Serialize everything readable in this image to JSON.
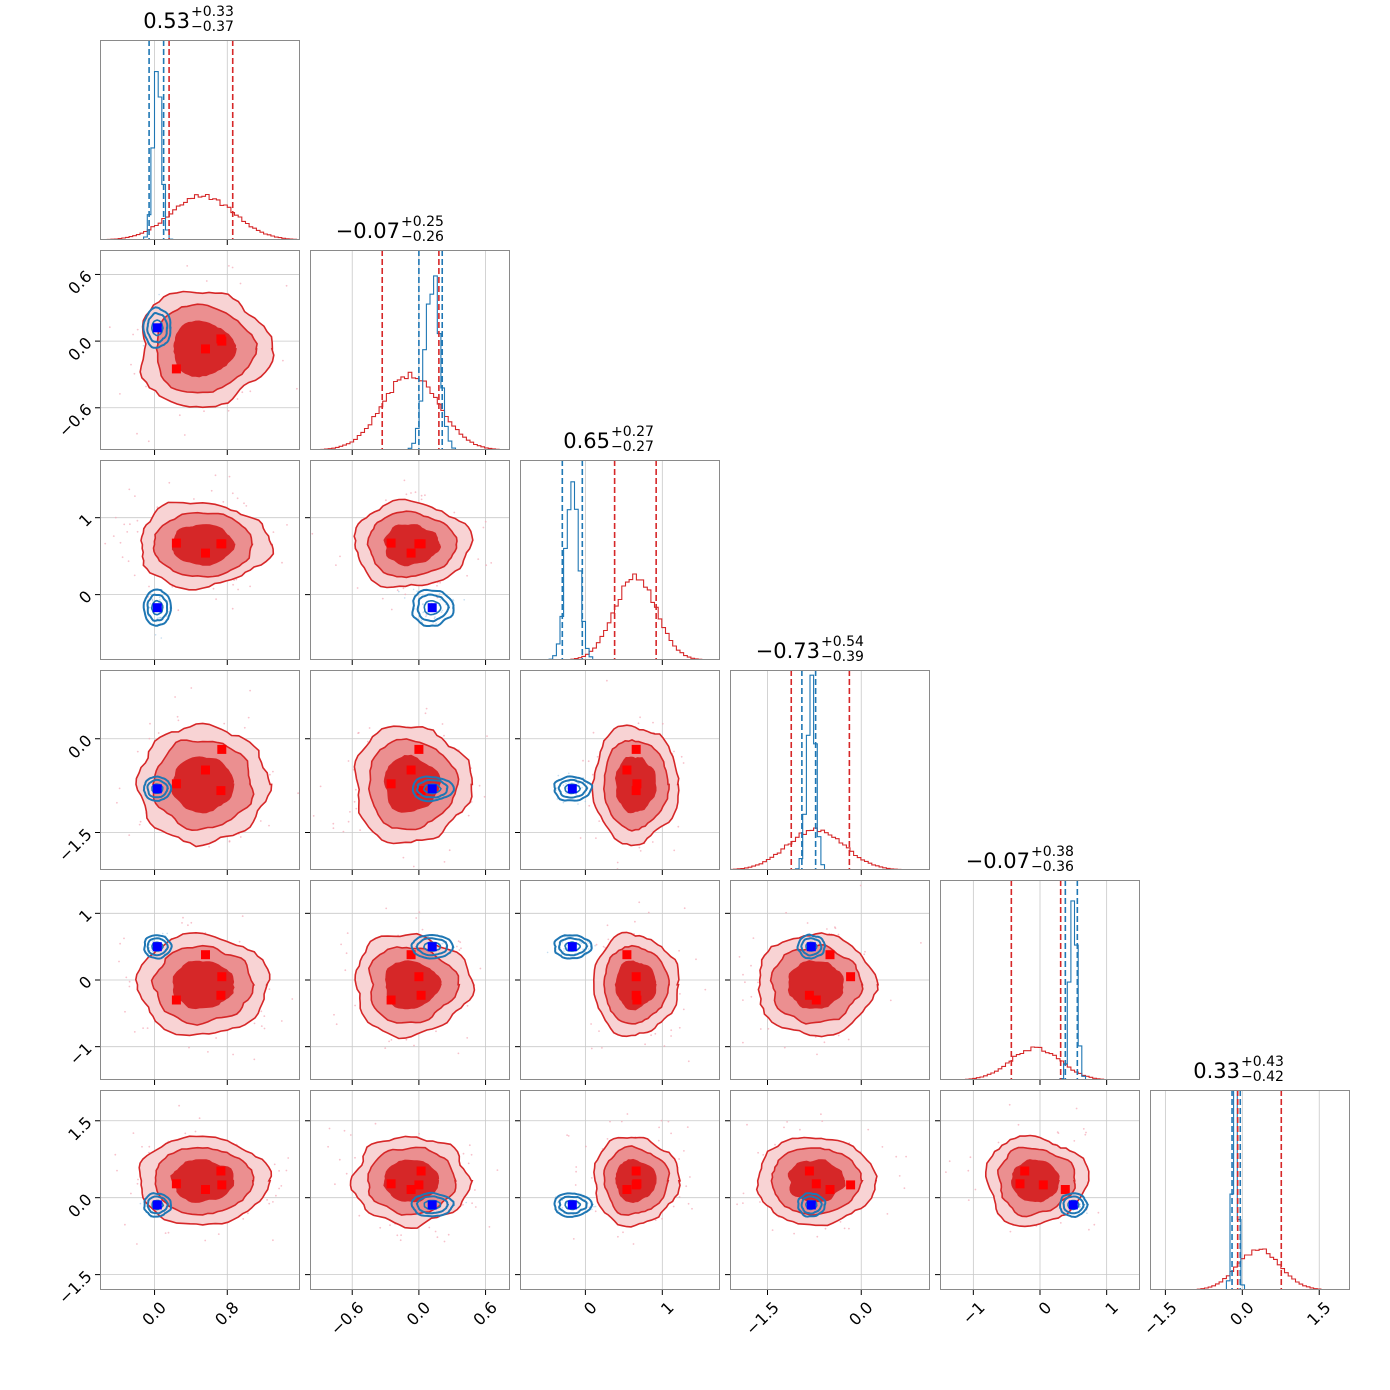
{
  "figure": {
    "colors": {
      "red": "#d62728",
      "blue": "#1f77b4",
      "grid": "#c8c8c8",
      "frame": "#8a8a8a",
      "fill1": "#d62728",
      "fill2": "#eb8f90",
      "fill3": "#f8d3d4",
      "marker_red": "#ff0000",
      "marker_blue": "#0000ff"
    }
  },
  "chart_data": {
    "type": "corner",
    "grid": true,
    "parameters": [
      {
        "range": [
          -0.6,
          1.6
        ],
        "ticks": [
          0.0,
          0.8
        ],
        "tick_labels": [
          "0.0",
          "0.8"
        ],
        "title": {
          "value": "0.53",
          "plus": "+0.33",
          "minus": "−0.37"
        },
        "red_hist": {
          "mu": 0.53,
          "sigma": 0.35,
          "peak": 0.22
        },
        "blue_hist": {
          "mu": 0.03,
          "sigma": 0.045,
          "peak": 0.92
        },
        "red_lines": [
          0.16,
          0.86
        ],
        "blue_lines": [
          -0.06,
          0.1
        ]
      },
      {
        "range": [
          -0.98,
          0.82
        ],
        "ticks": [
          -0.6,
          0.0,
          0.6
        ],
        "tick_labels": [
          "−0.6",
          "0.0",
          "0.6"
        ],
        "title": {
          "value": "−0.07",
          "plus": "+0.25",
          "minus": "−0.26"
        },
        "red_hist": {
          "mu": -0.07,
          "sigma": 0.255,
          "peak": 0.38
        },
        "blue_hist": {
          "mu": 0.12,
          "sigma": 0.065,
          "peak": 0.87
        },
        "red_lines": [
          -0.33,
          0.18
        ],
        "blue_lines": [
          0.0,
          0.21
        ]
      },
      {
        "range": [
          -0.85,
          1.75
        ],
        "ticks": [
          0,
          1
        ],
        "tick_labels": [
          "0",
          "1"
        ],
        "title": {
          "value": "0.65",
          "plus": "+0.27",
          "minus": "−0.27"
        },
        "red_hist": {
          "mu": 0.65,
          "sigma": 0.27,
          "peak": 0.42
        },
        "blue_hist": {
          "mu": -0.17,
          "sigma": 0.085,
          "peak": 0.87
        },
        "red_lines": [
          0.38,
          0.92
        ],
        "blue_lines": [
          -0.3,
          -0.04
        ]
      },
      {
        "range": [
          -2.1,
          1.1
        ],
        "ticks": [
          -1.5,
          0.0
        ],
        "tick_labels": [
          "−1.5",
          "0.0"
        ],
        "title": {
          "value": "−0.73",
          "plus": "+0.54",
          "minus": "−0.39"
        },
        "red_hist": {
          "mu": -0.73,
          "sigma": 0.46,
          "peak": 0.2
        },
        "blue_hist": {
          "mu": -0.8,
          "sigma": 0.07,
          "peak": 0.92
        },
        "red_lines": [
          -1.12,
          -0.19
        ],
        "blue_lines": [
          -0.95,
          -0.73
        ]
      },
      {
        "range": [
          -1.5,
          1.5
        ],
        "ticks": [
          -1,
          0,
          1
        ],
        "tick_labels": [
          "−1",
          "0",
          "1"
        ],
        "title": {
          "value": "−0.07",
          "plus": "+0.38",
          "minus": "−0.36"
        },
        "red_hist": {
          "mu": -0.07,
          "sigma": 0.37,
          "peak": 0.16
        },
        "blue_hist": {
          "mu": 0.5,
          "sigma": 0.055,
          "peak": 0.9
        },
        "red_lines": [
          -0.43,
          0.31
        ],
        "blue_lines": [
          0.38,
          0.56
        ]
      },
      {
        "range": [
          -1.8,
          2.1
        ],
        "ticks": [
          -1.5,
          0.0,
          1.5
        ],
        "tick_labels": [
          "−1.5",
          "0.0",
          "1.5"
        ],
        "title": {
          "value": "0.33",
          "plus": "+0.43",
          "minus": "−0.42"
        },
        "red_hist": {
          "mu": 0.33,
          "sigma": 0.42,
          "peak": 0.2
        },
        "blue_hist": {
          "mu": -0.14,
          "sigma": 0.055,
          "peak": 0.9
        },
        "red_lines": [
          -0.09,
          0.76
        ],
        "blue_lines": [
          -0.2,
          -0.04
        ]
      }
    ],
    "red_markers": [
      [
        0.73,
        0.02,
        0.66,
        -0.83,
        -0.23,
        0.52
      ],
      [
        0.56,
        -0.07,
        0.54,
        -0.5,
        0.38,
        0.16
      ],
      [
        0.24,
        -0.25,
        0.67,
        -0.72,
        -0.3,
        0.27
      ],
      [
        0.74,
        0.0,
        0.66,
        -0.17,
        0.05,
        0.25
      ]
    ],
    "blue_marker": [
      0.03,
      0.12,
      -0.17,
      -0.8,
      0.5,
      -0.14
    ],
    "blue_contour_scale": [
      0.07,
      0.07,
      0.09,
      0.07,
      0.06,
      0.06
    ]
  }
}
